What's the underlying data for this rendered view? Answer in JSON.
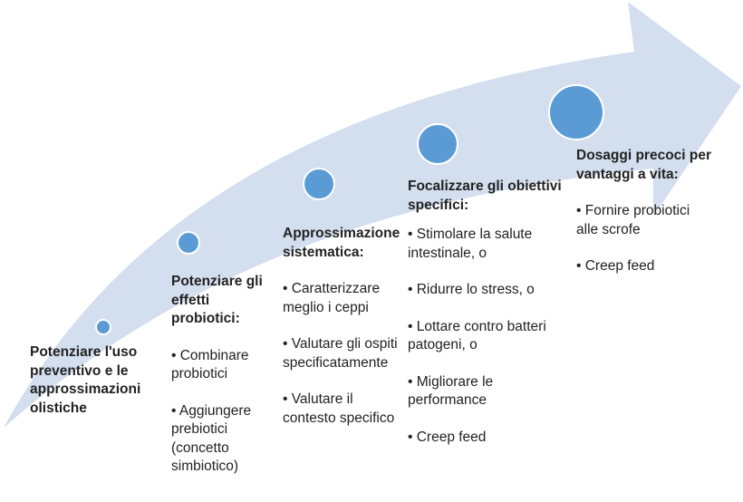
{
  "colors": {
    "arrow": "#D3DEEF",
    "circle": "#5B9BD5",
    "circle_border": "#FFFFFF",
    "text": "#222222"
  },
  "stages": [
    {
      "title": "Potenziare l'uso preventivo e le approssimazioni olistiche",
      "items": []
    },
    {
      "title": "Potenziare gli effetti probiotici:",
      "items": [
        "• Combinare probiotici",
        "• Aggiungere prebiotici (concetto simbiotico)"
      ]
    },
    {
      "title": "Approssimazione sistematica:",
      "items": [
        "• Caratterizzare meglio i ceppi",
        "• Valutare gli ospiti specificatamente",
        "• Valutare il contesto specifico"
      ]
    },
    {
      "title": "Focalizzare gli obiettivi specifici:",
      "items": [
        "• Stimolare la salute intestinale, o",
        "• Ridurre lo stress, o",
        "• Lottare contro batteri patogeni, o",
        "• Migliorare le performance",
        "• Creep feed"
      ]
    },
    {
      "title": "Dosaggi precoci per vantaggi a vita:",
      "items": [
        "• Fornire probiotici alle scrofe",
        "• Creep feed"
      ]
    }
  ]
}
